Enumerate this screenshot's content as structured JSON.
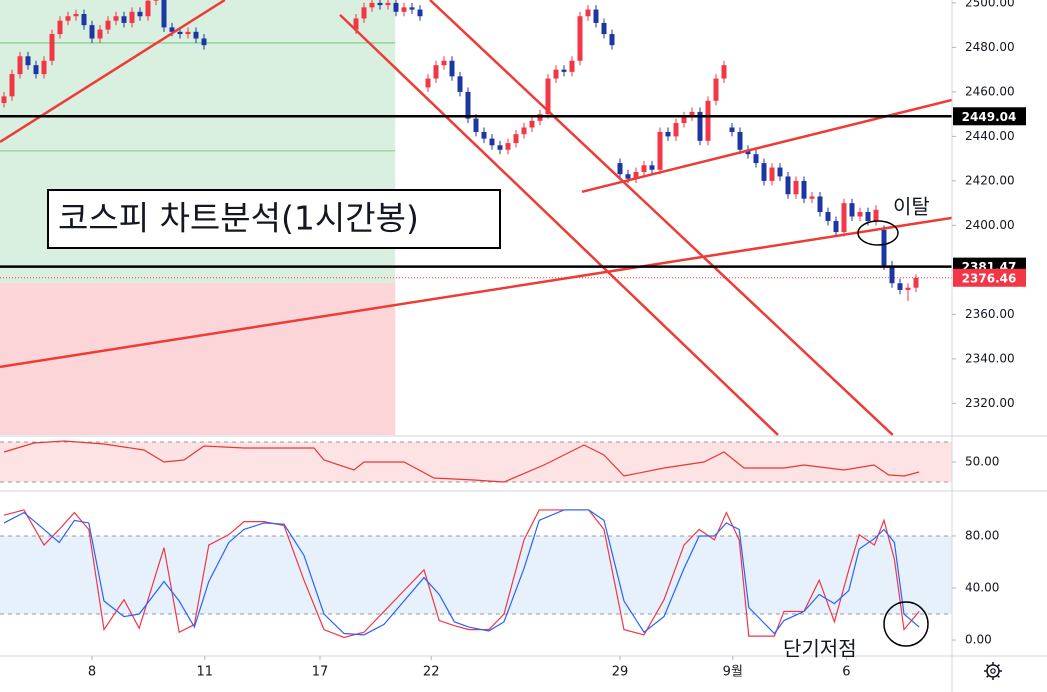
{
  "chart_data": [
    {
      "type": "candlestick",
      "title": "코스피 차트분석(1시간봉)",
      "annotations": [
        "이탈",
        "단기저점"
      ],
      "x": [
        0,
        1,
        2,
        3,
        4,
        5,
        6,
        7,
        8,
        9,
        10,
        11,
        12,
        13,
        14,
        15,
        16,
        17,
        18,
        19,
        20,
        21,
        22,
        23,
        24,
        25,
        44,
        45,
        46,
        47,
        48,
        49,
        50,
        51,
        52,
        53,
        54,
        55,
        56,
        57,
        58,
        59,
        60,
        61,
        62,
        63,
        64,
        65,
        66,
        67,
        68,
        69,
        70,
        71,
        72,
        73,
        74,
        75,
        76,
        77,
        78,
        79,
        80,
        81,
        82,
        83,
        84,
        85,
        86,
        87,
        88,
        89,
        90,
        91,
        92,
        93,
        94,
        95,
        96,
        97,
        98,
        99,
        100,
        101,
        102,
        103,
        104,
        105,
        106,
        107,
        108,
        109,
        110,
        111,
        112,
        113,
        114
      ],
      "open": [
        2455,
        2458,
        2468,
        2476,
        2472,
        2468,
        2474,
        2486,
        2492,
        2494,
        2495,
        2490,
        2484,
        2488,
        2492,
        2494,
        2491,
        2496,
        2494,
        2501,
        2505,
        2489,
        2487,
        2486,
        2487,
        2484,
        2488,
        2493,
        2498,
        2500,
        2499,
        2500,
        2496,
        2498,
        2497,
        2462,
        2466,
        2472,
        2474,
        2467,
        2460,
        2448,
        2442,
        2439,
        2436,
        2434,
        2437,
        2441,
        2444,
        2447,
        2450,
        2466,
        2470,
        2469,
        2474,
        2494,
        2497,
        2491,
        2486,
        2428,
        2423,
        2421,
        2424,
        2427,
        2425,
        2442,
        2440,
        2446,
        2449,
        2451,
        2438,
        2456,
        2466,
        2444,
        2442,
        2434,
        2432,
        2428,
        2420,
        2426,
        2422,
        2414,
        2420,
        2412,
        2413,
        2406,
        2402,
        2397,
        2410,
        2404,
        2406,
        2402,
        2398,
        2382,
        2374,
        2371,
        2372
      ],
      "high": [
        2460,
        2470,
        2478,
        2478,
        2474,
        2476,
        2488,
        2494,
        2496,
        2497,
        2497,
        2492,
        2490,
        2494,
        2496,
        2496,
        2498,
        2498,
        2503,
        2507,
        2507,
        2491,
        2489,
        2489,
        2489,
        2486,
        2495,
        2500,
        2502,
        2502,
        2502,
        2502,
        2500,
        2500,
        2499,
        2468,
        2474,
        2476,
        2476,
        2469,
        2462,
        2450,
        2444,
        2441,
        2438,
        2439,
        2443,
        2446,
        2449,
        2452,
        2468,
        2472,
        2472,
        2476,
        2496,
        2499,
        2499,
        2493,
        2488,
        2430,
        2425,
        2426,
        2429,
        2429,
        2444,
        2444,
        2448,
        2451,
        2453,
        2453,
        2458,
        2468,
        2474,
        2446,
        2444,
        2436,
        2434,
        2430,
        2428,
        2428,
        2424,
        2422,
        2422,
        2415,
        2415,
        2408,
        2404,
        2412,
        2412,
        2408,
        2408,
        2409,
        2400,
        2384,
        2376,
        2374,
        2378
      ],
      "low": [
        2453,
        2456,
        2466,
        2470,
        2466,
        2466,
        2472,
        2484,
        2490,
        2492,
        2488,
        2482,
        2482,
        2486,
        2490,
        2489,
        2489,
        2492,
        2492,
        2499,
        2487,
        2485,
        2484,
        2484,
        2482,
        2479,
        2486,
        2491,
        2496,
        2497,
        2497,
        2494,
        2494,
        2495,
        2492,
        2460,
        2464,
        2470,
        2465,
        2458,
        2446,
        2440,
        2437,
        2434,
        2432,
        2432,
        2435,
        2439,
        2442,
        2445,
        2448,
        2464,
        2467,
        2467,
        2472,
        2492,
        2489,
        2484,
        2479,
        2421,
        2419,
        2419,
        2422,
        2423,
        2423,
        2438,
        2438,
        2444,
        2447,
        2436,
        2436,
        2454,
        2464,
        2440,
        2432,
        2430,
        2426,
        2418,
        2418,
        2420,
        2412,
        2412,
        2410,
        2410,
        2404,
        2400,
        2395,
        2395,
        2402,
        2402,
        2400,
        2400,
        2380,
        2372,
        2369,
        2366,
        2370
      ],
      "close": [
        2458,
        2468,
        2476,
        2472,
        2468,
        2474,
        2486,
        2492,
        2494,
        2495,
        2490,
        2484,
        2488,
        2492,
        2494,
        2491,
        2496,
        2494,
        2501,
        2505,
        2489,
        2487,
        2486,
        2487,
        2484,
        2481,
        2493,
        2498,
        2500,
        2499,
        2500,
        2496,
        2498,
        2497,
        2494,
        2466,
        2472,
        2474,
        2467,
        2460,
        2448,
        2442,
        2439,
        2436,
        2434,
        2437,
        2441,
        2444,
        2447,
        2450,
        2466,
        2470,
        2469,
        2474,
        2494,
        2497,
        2491,
        2486,
        2481,
        2423,
        2421,
        2424,
        2427,
        2425,
        2442,
        2440,
        2446,
        2449,
        2451,
        2438,
        2456,
        2466,
        2472,
        2442,
        2434,
        2432,
        2428,
        2420,
        2426,
        2422,
        2414,
        2420,
        2412,
        2413,
        2406,
        2402,
        2397,
        2410,
        2404,
        2406,
        2402,
        2407,
        2382,
        2374,
        2371,
        2372,
        2376.46
      ],
      "up_color": "#f23645",
      "down_color": "#1c37a3",
      "xlim": [
        -0.5,
        118.5
      ],
      "xticks": [
        {
          "value": 11,
          "label": "8"
        },
        {
          "value": 25.1,
          "label": "11"
        },
        {
          "value": 39.5,
          "label": "17"
        },
        {
          "value": 53.4,
          "label": "22"
        },
        {
          "value": 77,
          "label": "29"
        },
        {
          "value": 91.1,
          "label": "9월"
        },
        {
          "value": 105.3,
          "label": "6"
        }
      ],
      "ylim": [
        2305.8,
        2501.3
      ],
      "yticks": [
        {
          "value": 2320,
          "label": "2320.00"
        },
        {
          "value": 2340,
          "label": "2340.00"
        },
        {
          "value": 2360,
          "label": "2360.00"
        },
        {
          "value": 2380,
          "label": "2380.00"
        },
        {
          "value": 2400,
          "label": "2400.00"
        },
        {
          "value": 2420,
          "label": "2420.00"
        },
        {
          "value": 2440,
          "label": "2440.00"
        },
        {
          "value": 2460,
          "label": "2460.00"
        },
        {
          "value": 2480,
          "label": "2480.00"
        },
        {
          "value": 2500,
          "label": "2500.00"
        }
      ],
      "levels": [
        2449.04,
        2381.47
      ],
      "level_color": "#000000",
      "last_price": 2376.46,
      "zones": [
        {
          "x": [
            -0.5,
            48.9
          ],
          "y": [
            2374.2,
            2501.3
          ],
          "color": "#d9efdf"
        },
        {
          "x": [
            -0.5,
            48.9
          ],
          "y": [
            2305.8,
            2374.2
          ],
          "color": "#fbd5d8"
        }
      ],
      "hlines": [
        2482,
        2433.5
      ],
      "hline_color": "#66bb6a",
      "trendlines": [
        {
          "x": [
            -0.5,
            27.6
          ],
          "y": [
            2437.5,
            2501.3
          ]
        },
        {
          "x": [
            42,
            96.75
          ],
          "y": [
            2494.6,
            2305.8
          ]
        },
        {
          "x": [
            53.25,
            111.1
          ],
          "y": [
            2501.3,
            2305.8
          ]
        },
        {
          "x": [
            72.25,
            118.5
          ],
          "y": [
            2415.1,
            2456.4
          ]
        },
        {
          "x": [
            -0.5,
            118.5
          ],
          "y": [
            2336.4,
            2403.4
          ]
        }
      ],
      "trendline_color": "#ef3b36",
      "grid": false
    },
    {
      "type": "line",
      "x": [
        0,
        3.75,
        7.5,
        12.5,
        17.5,
        20,
        22.5,
        25,
        30,
        38.75,
        40,
        43.75,
        45,
        50,
        53.75,
        58.75,
        62.5,
        67.5,
        72.5,
        75,
        77.5,
        82.5,
        87.5,
        90,
        92.5,
        97.5,
        100,
        105,
        108.75,
        110.6,
        112.5,
        114.4
      ],
      "values": [
        60,
        69,
        71,
        68,
        62,
        50,
        52,
        66,
        64,
        64,
        52,
        42,
        50,
        50,
        34,
        32,
        30,
        47,
        67,
        57,
        36,
        44,
        50,
        60,
        44,
        44,
        47,
        42,
        47,
        37,
        36,
        40
      ],
      "color": "#e53935",
      "ylim": [
        22,
        75
      ],
      "yticks": [
        {
          "value": 50,
          "label": "50.00"
        }
      ],
      "bands": [
        30,
        70
      ],
      "band_color": "#fde3e3"
    },
    {
      "type": "line",
      "x": [
        0,
        2.5,
        5,
        6.9,
        8.8,
        10.6,
        12.5,
        15,
        16.9,
        20,
        21.9,
        23.8,
        25.6,
        28.1,
        30,
        32.5,
        35,
        37.5,
        40,
        42.5,
        45,
        47.5,
        50,
        52.5,
        54.4,
        56.3,
        58.1,
        60.6,
        62.5,
        65,
        66.9,
        70,
        73.1,
        75,
        77.5,
        80,
        82.5,
        85,
        86.9,
        88.8,
        90.3,
        91.9,
        93.1,
        96.3,
        97.5,
        100,
        101.9,
        103.8,
        105.6,
        106.9,
        108.8,
        110,
        111.3,
        112.5,
        114.4
      ],
      "series": [
        {
          "color": "#f23645",
          "values": [
            96,
            100,
            73,
            85,
            98,
            85,
            8,
            31,
            9,
            71,
            6,
            12,
            73,
            81,
            91,
            91,
            88,
            46,
            8,
            2,
            6,
            22,
            38,
            54,
            15,
            11,
            8,
            8,
            20,
            77,
            100,
            100,
            100,
            85,
            8,
            4,
            31,
            73,
            85,
            77,
            98,
            77,
            3,
            3,
            22,
            22,
            46,
            14,
            54,
            81,
            73,
            92,
            62,
            8,
            22
          ]
        },
        {
          "color": "#2962ff",
          "values": [
            90,
            98,
            85,
            75,
            92,
            90,
            30,
            18,
            20,
            45,
            30,
            10,
            45,
            75,
            85,
            90,
            89,
            65,
            20,
            5,
            4,
            12,
            30,
            48,
            35,
            14,
            10,
            7,
            14,
            55,
            92,
            100,
            100,
            92,
            30,
            6,
            18,
            55,
            80,
            80,
            90,
            85,
            25,
            5,
            15,
            22,
            35,
            28,
            38,
            70,
            78,
            85,
            75,
            20,
            10
          ]
        }
      ],
      "ylim": [
        -11.5,
        113.8
      ],
      "yticks": [
        {
          "value": 0,
          "label": "0.00"
        },
        {
          "value": 40,
          "label": "40.00"
        },
        {
          "value": 80,
          "label": "80.00"
        }
      ],
      "bands": [
        20,
        80
      ],
      "band_color": "#e6f1fc"
    }
  ]
}
